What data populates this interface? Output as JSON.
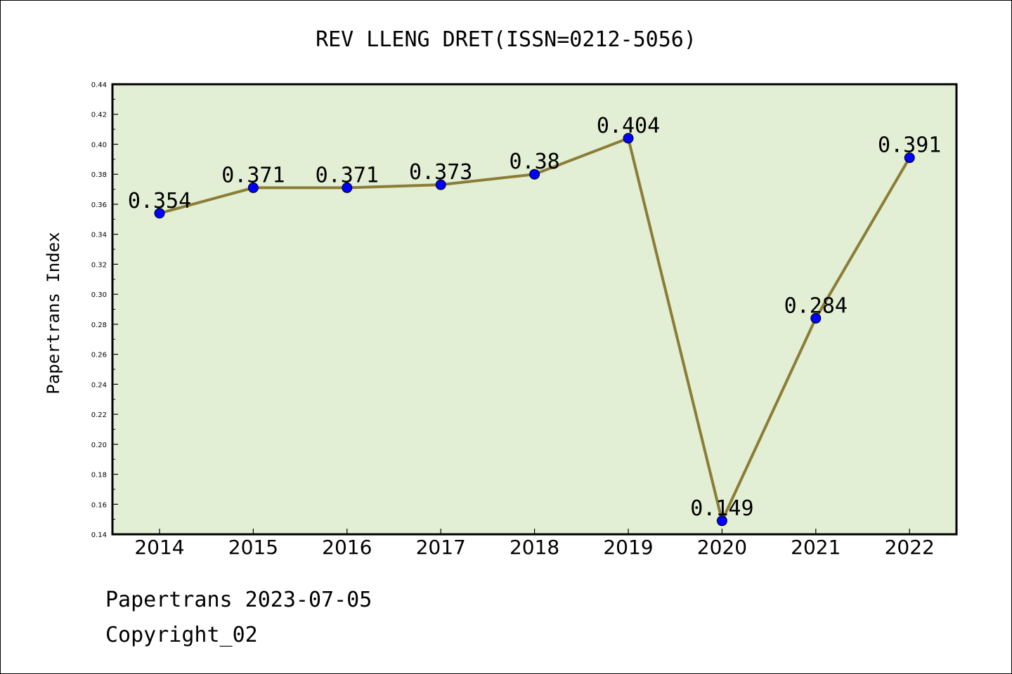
{
  "title": "REV LLENG DRET(ISSN=0212-5056)",
  "footer": {
    "line1": "Papertrans 2023-07-05",
    "line2": "Copyright_02"
  },
  "colors": {
    "plot_background": "#e2efd5",
    "line": "#8b7d36",
    "marker": "#0000ff"
  },
  "chart_data": {
    "type": "line",
    "title": "REV LLENG DRET(ISSN=0212-5056)",
    "xlabel": "",
    "ylabel": "Papertrans Index",
    "categories": [
      "2014",
      "2015",
      "2016",
      "2017",
      "2018",
      "2019",
      "2020",
      "2021",
      "2022"
    ],
    "series": [
      {
        "values": [
          0.354,
          0.371,
          0.371,
          0.373,
          0.38,
          0.404,
          0.149,
          0.284,
          0.391
        ]
      }
    ],
    "data_labels": [
      "0.354",
      "0.371",
      "0.371",
      "0.373",
      "0.38",
      "0.404",
      "0.149",
      "0.284",
      "0.391"
    ],
    "ylim": [
      0.14,
      0.44
    ],
    "yticks": [
      "0.14",
      "0.16",
      "0.18",
      "0.20",
      "0.22",
      "0.24",
      "0.26",
      "0.28",
      "0.30",
      "0.32",
      "0.34",
      "0.36",
      "0.38",
      "0.40",
      "0.42",
      "0.44"
    ],
    "grid": false,
    "legend": "none"
  }
}
